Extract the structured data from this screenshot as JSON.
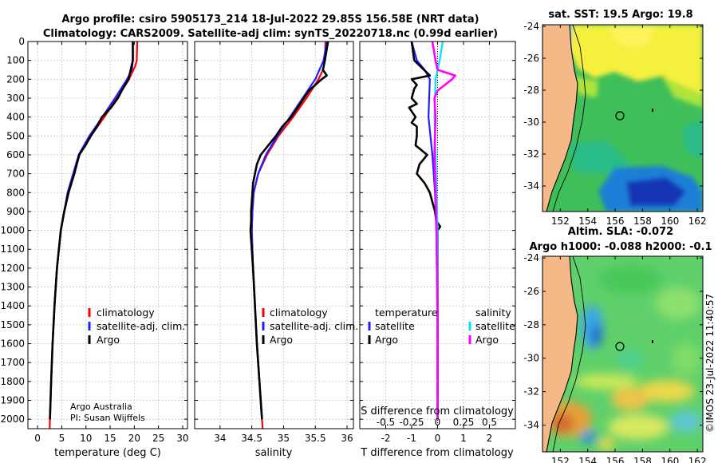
{
  "header": {
    "line1": "Argo profile: csiro 5905173_214 18-Jul-2022 29.85S 156.58E (NRT data)",
    "line2": "Climatology: CARS2009. Satellite-adj clim: synTS_20220718.nc (0.99d earlier)"
  },
  "colors": {
    "climatology": "#ff0000",
    "satellite": "#2020ff",
    "argo": "#000000",
    "sal_sat": "#00e0ff",
    "sal_argo": "#ff00ff",
    "land": "#f5b887",
    "coast": "#000000"
  },
  "depth_axis": {
    "ylim": [
      0,
      2050
    ],
    "ticks": [
      0,
      100,
      200,
      300,
      400,
      500,
      600,
      700,
      800,
      900,
      1000,
      1100,
      1200,
      1300,
      1400,
      1500,
      1600,
      1700,
      1800,
      1900,
      2000
    ],
    "tick_labels": [
      "0",
      "100",
      "200",
      "300",
      "400",
      "500",
      "600",
      "700",
      "800",
      "900",
      "1000",
      "1100",
      "1200",
      "1300",
      "1400",
      "1500",
      "1600",
      "1700",
      "1800",
      "1900",
      "2000"
    ]
  },
  "chart_data": [
    {
      "type": "line",
      "id": "temperature",
      "xlabel": "temperature (deg C)",
      "xlim": [
        -2,
        31
      ],
      "xticks": [
        0,
        5,
        10,
        15,
        20,
        25,
        30
      ],
      "xtick_labels": [
        "0",
        "5",
        "10",
        "15",
        "20",
        "25",
        "30"
      ],
      "legend": [
        "climatology",
        "satellite-adj. clim.",
        "Argo"
      ],
      "notes": [
        "Argo Australia",
        "PI: Susan Wijffels"
      ],
      "series": [
        {
          "name": "climatology",
          "depth": [
            0,
            100,
            130,
            200,
            300,
            400,
            500,
            600,
            800,
            1000,
            1200,
            1400,
            1600,
            1800,
            2000,
            2050
          ],
          "values": [
            20.6,
            20.5,
            20.2,
            18.9,
            16.4,
            13.8,
            11.0,
            8.7,
            6.3,
            4.8,
            4.0,
            3.5,
            3.1,
            2.8,
            2.55,
            2.5
          ]
        },
        {
          "name": "satellite-adj. clim.",
          "depth": [
            0,
            100,
            150,
            200,
            300,
            400,
            500,
            600,
            800,
            1000,
            1200,
            1400,
            1600,
            1800,
            2000
          ],
          "values": [
            19.7,
            19.7,
            19.5,
            18.5,
            16.0,
            13.4,
            10.7,
            8.5,
            6.2,
            4.8,
            4.0,
            3.5,
            3.1,
            2.8,
            2.55
          ]
        },
        {
          "name": "Argo",
          "depth": [
            0,
            100,
            200,
            260,
            300,
            350,
            400,
            450,
            500,
            550,
            600,
            700,
            800,
            900,
            1000,
            1200,
            1400,
            1600,
            1800,
            2000
          ],
          "values": [
            19.7,
            19.7,
            18.8,
            17.4,
            16.6,
            15.2,
            13.3,
            12.3,
            11.0,
            9.9,
            8.6,
            7.6,
            6.4,
            5.5,
            4.8,
            4.0,
            3.5,
            3.1,
            2.8,
            2.55
          ]
        }
      ]
    },
    {
      "type": "line",
      "id": "salinity",
      "xlabel": "salinity",
      "xlim": [
        33.6,
        36.1
      ],
      "xticks": [
        34,
        34.5,
        35,
        35.5,
        36
      ],
      "xtick_labels": [
        "34",
        "34.5",
        "35",
        "35.5",
        "36"
      ],
      "legend": [
        "climatology",
        "satellite-adj. clim.",
        "Argo"
      ],
      "series": [
        {
          "name": "climatology",
          "depth": [
            0,
            100,
            150,
            200,
            300,
            400,
            500,
            600,
            700,
            800,
            900,
            1000,
            1200,
            1400,
            1600,
            1800,
            2000,
            2050
          ],
          "values": [
            35.66,
            35.65,
            35.62,
            35.55,
            35.36,
            35.15,
            34.92,
            34.74,
            34.6,
            34.53,
            34.51,
            34.5,
            34.52,
            34.55,
            34.58,
            34.62,
            34.66,
            34.67
          ]
        },
        {
          "name": "satellite-adj. clim.",
          "depth": [
            0,
            100,
            200,
            300,
            400,
            500,
            600,
            700,
            800,
            900,
            1000,
            1200,
            1400,
            1600,
            1800,
            2000
          ],
          "values": [
            35.68,
            35.63,
            35.5,
            35.3,
            35.1,
            34.9,
            34.72,
            34.6,
            34.53,
            34.51,
            34.5,
            34.52,
            34.55,
            34.58,
            34.62,
            34.66
          ]
        },
        {
          "name": "Argo",
          "depth": [
            0,
            100,
            150,
            180,
            200,
            260,
            300,
            350,
            400,
            450,
            500,
            550,
            600,
            650,
            700,
            750,
            800,
            850,
            900,
            950,
            1000,
            1050,
            1100,
            1200,
            1400,
            1600,
            1800,
            2000
          ],
          "values": [
            35.7,
            35.65,
            35.62,
            35.68,
            35.6,
            35.4,
            35.32,
            35.22,
            35.12,
            34.98,
            34.88,
            34.76,
            34.64,
            34.58,
            34.55,
            34.52,
            34.51,
            34.5,
            34.49,
            34.49,
            34.48,
            34.49,
            34.5,
            34.52,
            34.55,
            34.58,
            34.62,
            34.66
          ]
        }
      ]
    },
    {
      "type": "line",
      "id": "difference",
      "xlabel": "T difference from climatology",
      "xlabel2": "S difference from climatology",
      "xlim": [
        -3,
        3
      ],
      "xticks": [
        -2,
        -1,
        0,
        1,
        2
      ],
      "xtick_labels": [
        "-2",
        "-1",
        "0",
        "1",
        "2"
      ],
      "s_tick_labels": [
        "-0.5",
        "-0.25",
        "0",
        "0.25",
        "0.5"
      ],
      "legend_titles": [
        "temperature",
        "salinity"
      ],
      "legend": [
        "satellite",
        "Argo",
        "satellite",
        "Argo"
      ],
      "series": [
        {
          "name": "temperature satellite",
          "depth": [
            0,
            50,
            100,
            150,
            200,
            400,
            600,
            800,
            1000,
            1500,
            2000
          ],
          "values": [
            -1.0,
            -0.9,
            -0.8,
            -0.5,
            -0.3,
            -0.35,
            -0.2,
            -0.1,
            -0.05,
            0,
            0
          ]
        },
        {
          "name": "temperature Argo",
          "depth": [
            0,
            100,
            180,
            200,
            230,
            250,
            300,
            330,
            350,
            400,
            430,
            450,
            500,
            550,
            600,
            650,
            700,
            750,
            800,
            850,
            900,
            950,
            980,
            1000,
            1100,
            1300,
            1500,
            1700,
            1900,
            2000
          ],
          "values": [
            -1.0,
            -0.9,
            -0.3,
            -1.0,
            -0.8,
            -0.9,
            -1.0,
            -0.8,
            -1.1,
            -0.85,
            -1.0,
            -0.8,
            -0.8,
            -0.85,
            -0.4,
            -0.7,
            -0.8,
            -0.5,
            -0.3,
            -0.2,
            -0.1,
            -0.05,
            0.1,
            0,
            0,
            0,
            0,
            0,
            0,
            0
          ]
        },
        {
          "name": "salinity satellite",
          "depth": [
            0,
            100,
            200,
            400,
            600,
            800,
            1000,
            1500,
            2000
          ],
          "values": [
            0.05,
            0.02,
            -0.02,
            -0.03,
            -0.02,
            -0.01,
            0,
            0,
            0
          ]
        },
        {
          "name": "salinity Argo",
          "depth": [
            0,
            100,
            150,
            180,
            200,
            260,
            300,
            400,
            600,
            800,
            1000,
            1500,
            2000
          ],
          "values": [
            -0.05,
            -0.02,
            0,
            0.17,
            0.14,
            0.0,
            -0.03,
            -0.02,
            -0.03,
            -0.02,
            -0.01,
            0,
            0
          ]
        }
      ]
    }
  ],
  "map_sst": {
    "title": "sat. SST: 19.5 Argo: 19.8",
    "xticks": [
      "152",
      "154",
      "156",
      "158",
      "160",
      "162"
    ],
    "yticks": [
      "-24",
      "-26",
      "-28",
      "-30",
      "-32",
      "-34"
    ]
  },
  "map_sla": {
    "title1": "Altim. SLA: -0.072",
    "title2": "Argo h1000: -0.088 h2000: -0.1",
    "xticks": [
      "152",
      "154",
      "156",
      "158",
      "160",
      "162"
    ],
    "yticks": [
      "-24",
      "-26",
      "-28",
      "-30",
      "-32",
      "-34"
    ]
  },
  "map_points": {
    "argo_lon": 156.58,
    "argo_lat": -29.85
  },
  "footer_stamp": "©IMOS 23-Jul-2022 11:40:57"
}
